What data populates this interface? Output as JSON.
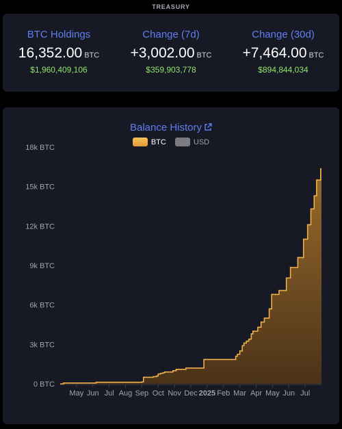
{
  "header": {
    "label": "TREASURY"
  },
  "stats": [
    {
      "label": "BTC Holdings",
      "value": "16,352.00",
      "unit": "BTC",
      "usd": "$1,960,409,106"
    },
    {
      "label": "Change (7d)",
      "value": "+3,002.00",
      "unit": "BTC",
      "usd": "$359,903,778"
    },
    {
      "label": "Change (30d)",
      "value": "+7,464.00",
      "unit": "BTC",
      "usd": "$894,844,034"
    }
  ],
  "chart": {
    "title": "Balance History",
    "external_icon": "external-link-icon",
    "legend": [
      {
        "name": "BTC",
        "color": "#f0b04a",
        "active": true
      },
      {
        "name": "USD",
        "color": "#7c7c80",
        "active": false
      }
    ]
  },
  "chart_data": {
    "type": "area",
    "step": true,
    "series": [
      {
        "name": "BTC",
        "color": "#f0b04a",
        "points": [
          [
            0,
            0
          ],
          [
            0.2,
            60
          ],
          [
            2.0,
            60
          ],
          [
            2.2,
            120
          ],
          [
            4.8,
            120
          ],
          [
            5.0,
            150
          ],
          [
            5.1,
            500
          ],
          [
            5.5,
            500
          ],
          [
            5.7,
            550
          ],
          [
            5.9,
            600
          ],
          [
            6.0,
            750
          ],
          [
            6.15,
            800
          ],
          [
            6.3,
            850
          ],
          [
            6.4,
            900
          ],
          [
            6.9,
            1000
          ],
          [
            7.1,
            1100
          ],
          [
            7.7,
            1200
          ],
          [
            8.7,
            1200
          ],
          [
            8.8,
            1850
          ],
          [
            10.7,
            1850
          ],
          [
            10.75,
            2100
          ],
          [
            10.85,
            2250
          ],
          [
            11.0,
            2500
          ],
          [
            11.15,
            2900
          ],
          [
            11.25,
            3100
          ],
          [
            11.4,
            3250
          ],
          [
            11.55,
            3400
          ],
          [
            11.7,
            3800
          ],
          [
            11.8,
            4000
          ],
          [
            12.1,
            4300
          ],
          [
            12.3,
            4700
          ],
          [
            12.5,
            5000
          ],
          [
            12.8,
            5700
          ],
          [
            12.95,
            6800
          ],
          [
            13.4,
            7100
          ],
          [
            13.85,
            8050
          ],
          [
            14.1,
            8850
          ],
          [
            14.55,
            9600
          ],
          [
            14.9,
            11000
          ],
          [
            15.15,
            12100
          ],
          [
            15.35,
            13300
          ],
          [
            15.55,
            14300
          ],
          [
            15.7,
            15500
          ],
          [
            15.95,
            16352
          ],
          [
            16.0,
            16352
          ]
        ]
      }
    ],
    "x_ticks": [
      {
        "pos": 1,
        "label": "May",
        "bold": false
      },
      {
        "pos": 2,
        "label": "Jun",
        "bold": false
      },
      {
        "pos": 3,
        "label": "Jul",
        "bold": false
      },
      {
        "pos": 4,
        "label": "Aug",
        "bold": false
      },
      {
        "pos": 5,
        "label": "Sep",
        "bold": false
      },
      {
        "pos": 6,
        "label": "Oct",
        "bold": false
      },
      {
        "pos": 7,
        "label": "Nov",
        "bold": false
      },
      {
        "pos": 8,
        "label": "Dec",
        "bold": false
      },
      {
        "pos": 9,
        "label": "2025",
        "bold": true
      },
      {
        "pos": 10,
        "label": "Feb",
        "bold": false
      },
      {
        "pos": 11,
        "label": "Mar",
        "bold": false
      },
      {
        "pos": 12,
        "label": "Apr",
        "bold": false
      },
      {
        "pos": 13,
        "label": "May",
        "bold": false
      },
      {
        "pos": 14,
        "label": "Jun",
        "bold": false
      },
      {
        "pos": 15,
        "label": "Jul",
        "bold": false
      }
    ],
    "y_ticks": [
      {
        "value": 0,
        "label": "0 BTC"
      },
      {
        "value": 3000,
        "label": "3k BTC"
      },
      {
        "value": 6000,
        "label": "6k BTC"
      },
      {
        "value": 9000,
        "label": "9k BTC"
      },
      {
        "value": 12000,
        "label": "12k BTC"
      },
      {
        "value": 15000,
        "label": "15k BTC"
      },
      {
        "value": 18000,
        "label": "18k BTC"
      }
    ],
    "xlim": [
      0,
      16
    ],
    "ylim": [
      0,
      18000
    ],
    "grid": false
  }
}
